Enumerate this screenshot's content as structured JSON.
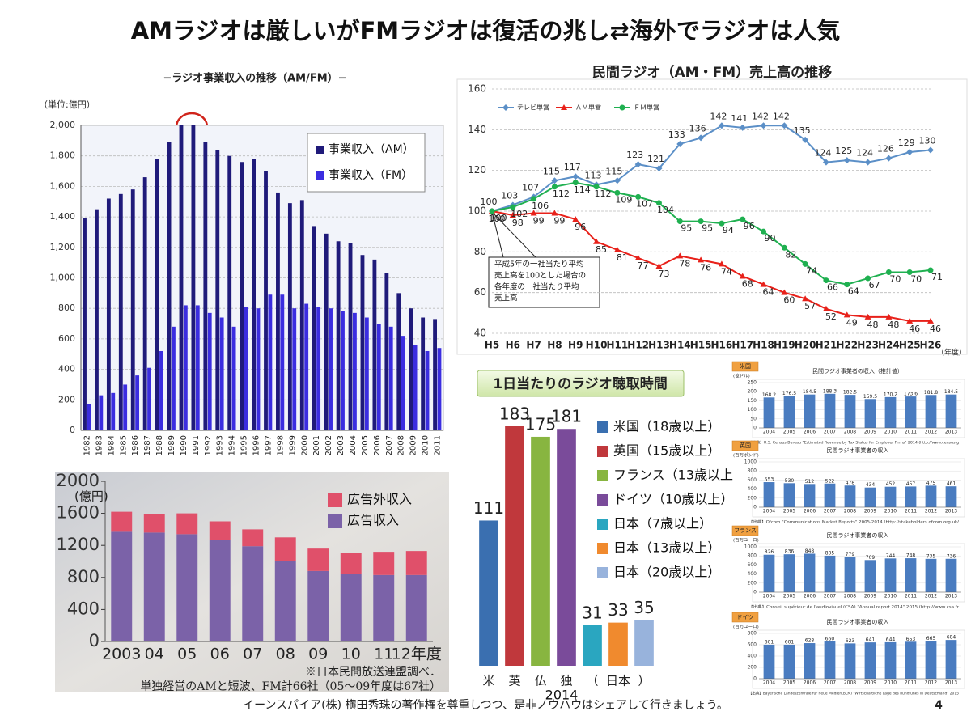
{
  "title": "AMラジオは厳しいがFMラジオは復活の兆し⇄海外でラジオは人気",
  "footer": "イーンスパイア(株) 横田秀珠の著作権を尊重しつつ、是非ノウハウはシェアして行きましょう。",
  "page_number": 4,
  "chart_data": [
    {
      "type": "bar",
      "title": "−ラジオ事業収入の推移（AM/FM）−",
      "y_unit": "（単位:億円）",
      "categories": [
        "1982",
        "1983",
        "1984",
        "1985",
        "1986",
        "1987",
        "1988",
        "1989",
        "1990",
        "1991",
        "1992",
        "1993",
        "1994",
        "1995",
        "1996",
        "1997",
        "1998",
        "1999",
        "2000",
        "2001",
        "2002",
        "2003",
        "2004",
        "2005",
        "2006",
        "2007",
        "2008",
        "2009",
        "2010",
        "2011"
      ],
      "series": [
        {
          "name": "事業収入（AM）",
          "color": "#1f1a7a",
          "values": [
            1390,
            1450,
            1520,
            1550,
            1580,
            1660,
            1780,
            1890,
            2000,
            2000,
            1890,
            1840,
            1800,
            1760,
            1780,
            1700,
            1560,
            1490,
            1510,
            1340,
            1290,
            1240,
            1230,
            1150,
            1120,
            1030,
            900,
            800,
            740,
            730
          ]
        },
        {
          "name": "事業収入（FM）",
          "color": "#3b2de0",
          "values": [
            170,
            230,
            245,
            300,
            360,
            410,
            520,
            680,
            820,
            820,
            770,
            740,
            680,
            810,
            800,
            890,
            890,
            800,
            830,
            810,
            800,
            780,
            770,
            740,
            700,
            680,
            620,
            560,
            520,
            540
          ]
        }
      ],
      "ylim": [
        0,
        2000
      ],
      "yticks": [
        0,
        200,
        400,
        600,
        800,
        {
          "value": 1000,
          "label": "1,000"
        },
        {
          "value": 1200,
          "label": "1,200"
        },
        {
          "value": 1400,
          "label": "1,400"
        },
        {
          "value": 1600,
          "label": "1,600"
        },
        {
          "value": 1800,
          "label": "1,800"
        },
        {
          "value": 2000,
          "label": "2,000"
        }
      ],
      "grid": true
    },
    {
      "type": "line",
      "title": "民間ラジオ（AM・FM）売上高の推移",
      "categories": [
        "H5",
        "H6",
        "H7",
        "H8",
        "H9",
        "H10",
        "H11",
        "H12",
        "H13",
        "H14",
        "H15",
        "H16",
        "H17",
        "H18",
        "H19",
        "H20",
        "H21",
        "H22",
        "H23",
        "H24",
        "H25",
        "H26"
      ],
      "x_unit": "（年度）",
      "series": [
        {
          "name": "テレビ単営",
          "color": "#5b8fc7",
          "values": [
            100,
            103,
            107,
            115,
            117,
            113,
            115,
            123,
            121,
            133,
            136,
            142,
            141,
            142,
            142,
            135,
            124,
            125,
            124,
            126,
            129,
            130
          ]
        },
        {
          "name": "ＡＭ単営",
          "color": "#e8211a",
          "values": [
            100,
            98,
            99,
            99,
            96,
            85,
            81,
            77,
            73,
            78,
            76,
            74,
            68,
            64,
            60,
            57,
            52,
            49,
            48,
            48,
            46,
            46
          ]
        },
        {
          "name": "ＦＭ単営",
          "color": "#1fb050",
          "values": [
            100,
            102,
            106,
            112,
            114,
            112,
            109,
            107,
            104,
            95,
            95,
            94,
            96,
            90,
            82,
            74,
            66,
            64,
            67,
            70,
            70,
            71
          ]
        }
      ],
      "ylim": [
        40,
        160
      ],
      "yticks": [
        40,
        60,
        80,
        100,
        120,
        140,
        160
      ],
      "grid": true,
      "legend": "top-left",
      "annotation": [
        "平成5年の一社当たり平均",
        "売上高を100とした場合の",
        "各年度の一社当たり平均",
        "売上高"
      ]
    },
    {
      "type": "bar",
      "stacked": true,
      "y_unit": "(億円)",
      "categories": [
        "2003",
        "04",
        "05",
        "06",
        "07",
        "08",
        "09",
        "10",
        "11",
        "12年度"
      ],
      "series": [
        {
          "name": "広告収入",
          "color": "#7b62a8",
          "values": [
            1370,
            1360,
            1340,
            1270,
            1190,
            1000,
            880,
            840,
            830,
            830
          ]
        },
        {
          "name": "広告外収入",
          "color": "#e0506a",
          "values": [
            250,
            230,
            260,
            230,
            210,
            300,
            280,
            270,
            290,
            300
          ]
        }
      ],
      "ylim": [
        0,
        2000
      ],
      "yticks": [
        0,
        400,
        800,
        1200,
        1600,
        2000
      ],
      "notes": [
        "※日本民間放送連盟調べ．",
        "単独経営のAMと短波、FM計66社（05～09年度は67社）"
      ]
    },
    {
      "type": "bar",
      "title": "1日当たりのラジオ聴取時間",
      "categories": [
        "米",
        "英",
        "仏",
        "独",
        "（",
        "日本",
        "）"
      ],
      "xlabel": "2014",
      "values": [
        111,
        183,
        175,
        181,
        31,
        33,
        35
      ],
      "colors": [
        "#3a6fb0",
        "#c0383c",
        "#88b540",
        "#7a4b9a",
        "#2aa6c0",
        "#f08a2e",
        "#98b3dc"
      ],
      "legend_labels": [
        "米国（18歳以上）",
        "英国（15歳以上）",
        "フランス（13歳以上",
        "ドイツ（10歳以上）",
        "日本（7歳以上）",
        "日本（13歳以上）",
        "日本（20歳以上）"
      ]
    },
    {
      "type": "bar",
      "country": "米国",
      "title": "民間ラジオ事業者の収入（推計値）",
      "y_unit": "(億ドル)",
      "categories": [
        "2004",
        "2005",
        "2006",
        "2007",
        "2008",
        "2009",
        "2010",
        "2011",
        "2012",
        "2013"
      ],
      "values": [
        168.2,
        176.5,
        184.5,
        188.3,
        182.5,
        159.5,
        170.2,
        173.6,
        181.8,
        184.5
      ],
      "color": "#4a7cc0",
      "ylim": [
        0,
        250
      ],
      "yticks": [
        0,
        50,
        100,
        150,
        200,
        250
      ],
      "source": "【出典】U.S. Census Bureau \"Estimated Revenue by Tax Status for Employer Firms\" 2014 (http://www.census.g"
    },
    {
      "type": "bar",
      "country": "英国",
      "title": "民間ラジオ事業者の収入",
      "y_unit": "(百万ポンド)",
      "categories": [
        "2004",
        "2005",
        "2006",
        "2007",
        "2008",
        "2009",
        "2010",
        "2011",
        "2012",
        "2013"
      ],
      "values": [
        553,
        530,
        512,
        522,
        478,
        434,
        452,
        457,
        475,
        461
      ],
      "color": "#4a7cc0",
      "ylim": [
        0,
        1000
      ],
      "yticks": [
        0,
        200,
        400,
        600,
        800,
        1000
      ],
      "source": "【出典】Ofcom \"Communications Market Reports\" 2005-2014 (http://stakeholders.ofcom.org.uk/"
    },
    {
      "type": "bar",
      "country": "フランス",
      "title": "民間ラジオ事業者の収入",
      "y_unit": "(百万ユーロ)",
      "categories": [
        "2004",
        "2005",
        "2006",
        "2007",
        "2008",
        "2009",
        "2010",
        "2011",
        "2012",
        "2013"
      ],
      "values": [
        826,
        836,
        848,
        805,
        779,
        709,
        744,
        748,
        735,
        736
      ],
      "color": "#4a7cc0",
      "ylim": [
        0,
        1000
      ],
      "yticks": [
        0,
        200,
        400,
        600,
        800,
        1000
      ],
      "source": "【出典】Conseil supérieur de l'audiovisuel (CSA) \"Annual report 2014\" 2015 (http://www.csa.fr"
    },
    {
      "type": "bar",
      "country": "ドイツ",
      "title": "民間ラジオ事業者の収入",
      "y_unit": "(百万ユーロ)",
      "categories": [
        "2004",
        "2005",
        "2006",
        "2007",
        "2008",
        "2009",
        "2010",
        "2011",
        "2012",
        "2013"
      ],
      "values": [
        601,
        601,
        628,
        660,
        623,
        641,
        644,
        653,
        665,
        684
      ],
      "color": "#4a7cc0",
      "ylim": [
        0,
        800
      ],
      "yticks": [
        0,
        200,
        400,
        600,
        800
      ],
      "source": "【出典】Bayerische Landeszentrale für neue Medien(BLM) \"Wirtschaftliche Lage des Rundfunks in Deutschland\" 2015"
    }
  ]
}
